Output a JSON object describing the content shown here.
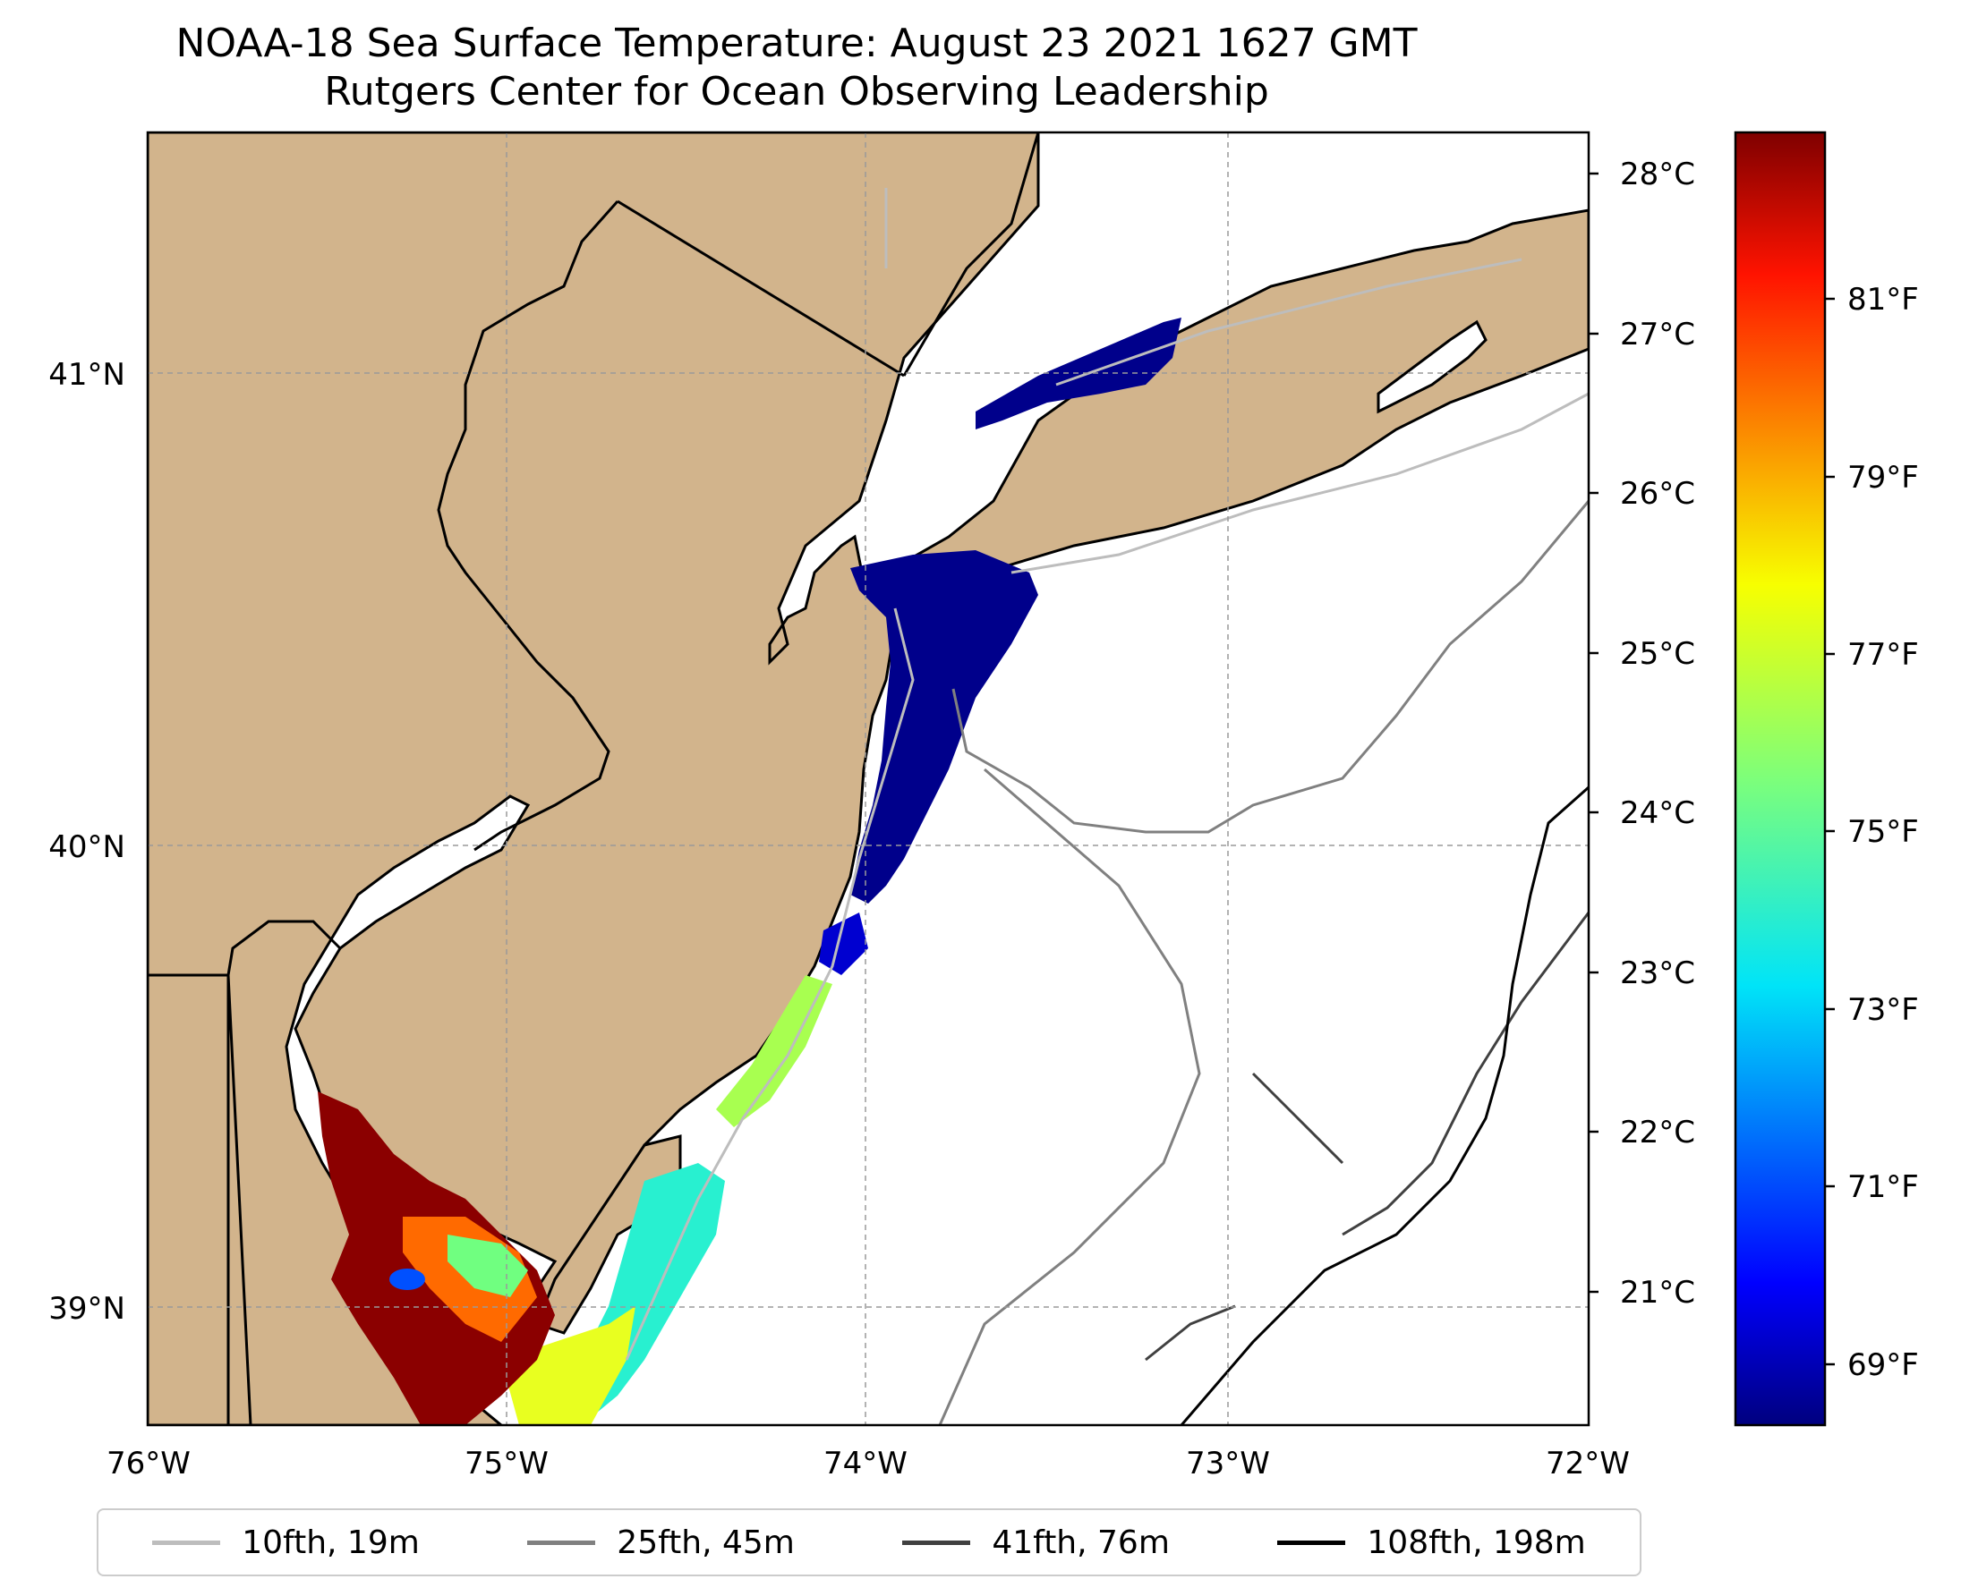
{
  "title": {
    "line1": "NOAA-18 Sea Surface Temperature: August 23 2021 1627 GMT",
    "line2": "Rutgers Center for Ocean Observing Leadership"
  },
  "axes": {
    "lon_ticks": [
      "76°W",
      "75°W",
      "74°W",
      "73°W",
      "72°W"
    ],
    "lat_ticks": [
      "41°N",
      "40°N",
      "39°N"
    ],
    "lon_range": [
      -76,
      -72
    ],
    "lat_range": [
      38.75,
      41.5
    ],
    "grid": true
  },
  "colorbar": {
    "colormap": "jet",
    "celsius_labels": [
      "28°C",
      "27°C",
      "26°C",
      "25°C",
      "24°C",
      "23°C",
      "22°C",
      "21°C"
    ],
    "fahrenheit_labels": [
      "81°F",
      "79°F",
      "77°F",
      "75°F",
      "73°F",
      "71°F",
      "69°F"
    ]
  },
  "legend": {
    "placement": "bottom",
    "items": [
      {
        "label": "10fth, 19m",
        "color": "#bdbdbd"
      },
      {
        "label": "25fth, 45m",
        "color": "#808080"
      },
      {
        "label": "41fth, 76m",
        "color": "#404040"
      },
      {
        "label": "108fth, 198m",
        "color": "#000000"
      }
    ]
  },
  "colors": {
    "land": "#d2b48c",
    "ocean": "#ffffff",
    "cold_sst": "#00008b",
    "warm_sst": "#8b0000"
  }
}
